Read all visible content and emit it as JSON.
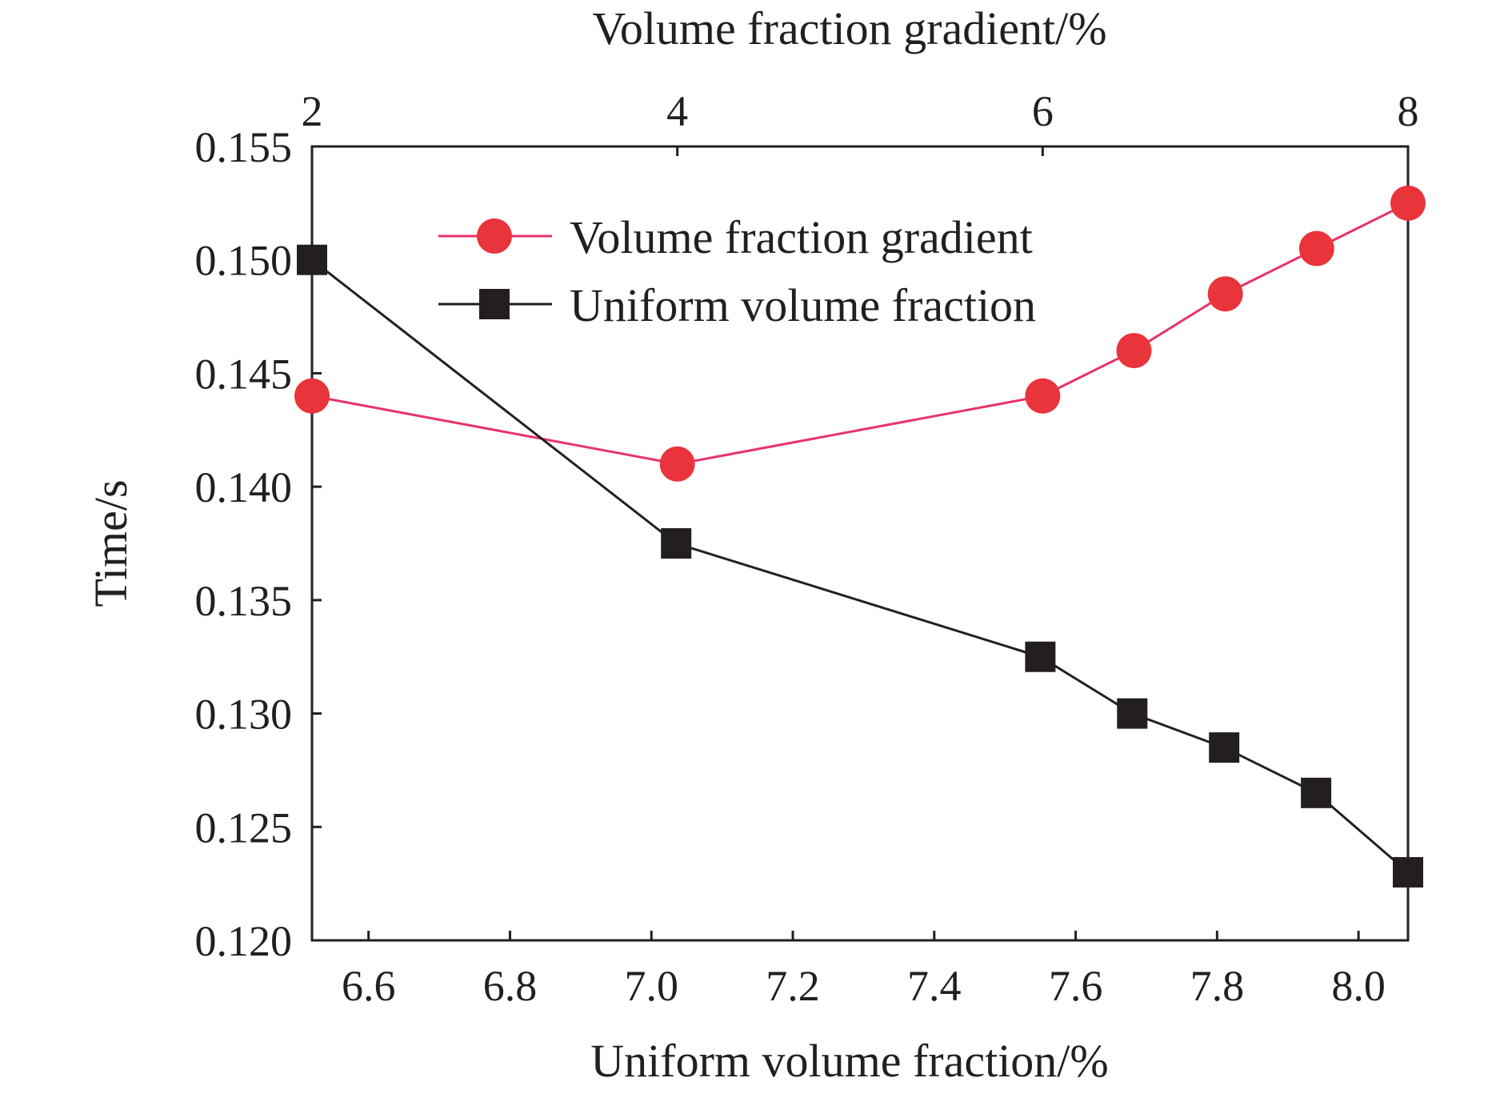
{
  "chart_data": {
    "type": "line",
    "title": "",
    "top_xlabel": "Volume fraction gradient/%",
    "bottom_xlabel": "Uniform volume fraction/%",
    "ylabel": "Time/s",
    "ylim": [
      0.12,
      0.155
    ],
    "yticks": [
      0.12,
      0.125,
      0.13,
      0.135,
      0.14,
      0.145,
      0.15,
      0.155
    ],
    "ytick_labels": [
      "0.120",
      "0.125",
      "0.130",
      "0.135",
      "0.140",
      "0.145",
      "0.150",
      "0.155"
    ],
    "bottom_xlim": [
      6.52,
      8.07
    ],
    "bottom_xticks": [
      6.6,
      6.8,
      7.0,
      7.2,
      7.4,
      7.6,
      7.8,
      8.0
    ],
    "bottom_xtick_labels": [
      "6.6",
      "6.8",
      "7.0",
      "7.2",
      "7.4",
      "7.6",
      "7.8",
      "8.0"
    ],
    "top_xlim": [
      2,
      8
    ],
    "top_xticks": [
      2,
      4,
      6,
      8
    ],
    "top_xtick_labels": [
      "2",
      "4",
      "6",
      "8"
    ],
    "grid": false,
    "legend_position": "top-center",
    "series": [
      {
        "name": "Volume fraction gradient",
        "axis": "top",
        "marker": "circle",
        "line_color": "#e8336a",
        "marker_color": "#e8343a",
        "x": [
          2,
          4,
          6,
          6.5,
          7,
          7.5,
          8
        ],
        "y": [
          0.144,
          0.141,
          0.144,
          0.146,
          0.1485,
          0.1505,
          0.1525
        ]
      },
      {
        "name": "Uniform volume fraction",
        "axis": "bottom",
        "marker": "square",
        "line_color": "#231f20",
        "marker_color": "#231f20",
        "x": [
          6.52,
          7.035,
          7.55,
          7.68,
          7.81,
          7.94,
          8.07
        ],
        "y": [
          0.15,
          0.1375,
          0.1325,
          0.13,
          0.1285,
          0.1265,
          0.123
        ]
      }
    ]
  }
}
